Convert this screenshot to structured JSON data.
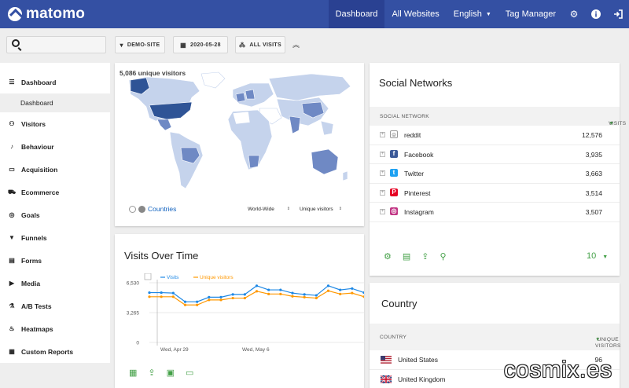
{
  "nav": {
    "brand": "matomo",
    "items": [
      {
        "label": "Dashboard",
        "active": true
      },
      {
        "label": "All Websites"
      },
      {
        "label": "English"
      },
      {
        "label": "Tag Manager"
      }
    ],
    "icons": [
      "gear-icon",
      "info-icon",
      "sign-out-icon"
    ]
  },
  "filters": {
    "search_placeholder": "",
    "site": "DEMO-SITE",
    "date": "2020-05-28",
    "segment": "ALL VISITS"
  },
  "sidebar": {
    "items": [
      {
        "label": "Dashboard",
        "icon": "grid-icon"
      },
      {
        "label": "Dashboard",
        "sub": true
      },
      {
        "label": "Visitors",
        "icon": "binoculars-icon"
      },
      {
        "label": "Behaviour",
        "icon": "bell-icon"
      },
      {
        "label": "Acquisition",
        "icon": "window-icon"
      },
      {
        "label": "Ecommerce",
        "icon": "cart-icon"
      },
      {
        "label": "Goals",
        "icon": "target-icon"
      },
      {
        "label": "Funnels",
        "icon": "funnel-icon"
      },
      {
        "label": "Forms",
        "icon": "form-icon"
      },
      {
        "label": "Media",
        "icon": "media-icon"
      },
      {
        "label": "A/B Tests",
        "icon": "flask-icon"
      },
      {
        "label": "Heatmaps",
        "icon": "flame-icon"
      },
      {
        "label": "Custom Reports",
        "icon": "report-icon"
      }
    ]
  },
  "map": {
    "title": "5,086 unique visitors",
    "link": "Countries",
    "region_select": "World-Wide",
    "metric_select": "Unique visitors",
    "colors": {
      "top": "#2f5496",
      "mid": "#6f89c4",
      "low": "#c5d3ec",
      "none": "#ffffff"
    }
  },
  "visits_over_time": {
    "title": "Visits Over Time",
    "y_ticks": [
      "6,530",
      "3,265",
      "0"
    ],
    "x_ticks": [
      "Wed, Apr 29",
      "Wed, May 6"
    ],
    "footer_icons": [
      "calendar-icon",
      "export-icon",
      "image-icon",
      "comment-icon"
    ]
  },
  "chart_data": {
    "type": "line",
    "x": [
      "Apr 29",
      "Apr 30",
      "May 1",
      "May 2",
      "May 3",
      "May 4",
      "May 5",
      "May 6",
      "May 7",
      "May 8",
      "May 9",
      "May 10",
      "May 11",
      "May 12",
      "May 13",
      "May 14",
      "May 15",
      "May 16",
      "May 17"
    ],
    "series": [
      {
        "name": "Visits",
        "color": "#1e88e5",
        "values": [
          5450,
          5450,
          5400,
          4450,
          4450,
          4950,
          4950,
          5250,
          5250,
          6200,
          5750,
          5750,
          5400,
          5250,
          5150,
          6200,
          5750,
          5900,
          5450
        ]
      },
      {
        "name": "Unique visitors",
        "color": "#ff9800",
        "values": [
          5000,
          5000,
          5000,
          4100,
          4100,
          4650,
          4650,
          4850,
          4850,
          5600,
          5300,
          5300,
          5050,
          4950,
          4850,
          5650,
          5300,
          5400,
          5000
        ]
      }
    ],
    "ylim": [
      0,
      6530
    ],
    "xlabel": "",
    "ylabel": ""
  },
  "social": {
    "title": "Social Networks",
    "col_label": "SOCIAL NETWORK",
    "col_value": "VISITS",
    "rows": [
      {
        "label": "reddit",
        "value": "12,576",
        "icon": "reddit-icon",
        "color": "#ffffff"
      },
      {
        "label": "Facebook",
        "value": "3,935",
        "icon": "facebook-icon",
        "color": "#3b5998"
      },
      {
        "label": "Twitter",
        "value": "3,663",
        "icon": "twitter-icon",
        "color": "#1da1f2"
      },
      {
        "label": "Pinterest",
        "value": "3,514",
        "icon": "pinterest-icon",
        "color": "#e60023"
      },
      {
        "label": "Instagram",
        "value": "3,507",
        "icon": "instagram-icon",
        "color": "#c13584"
      }
    ],
    "limit": "10"
  },
  "country": {
    "title": "Country",
    "col_label": "COUNTRY",
    "col_value": "UNIQUE VISITORS",
    "rows": [
      {
        "label": "United States",
        "value": "96"
      },
      {
        "label": "United Kingdom",
        "value": ""
      }
    ]
  },
  "watermark": "cosmix.es"
}
